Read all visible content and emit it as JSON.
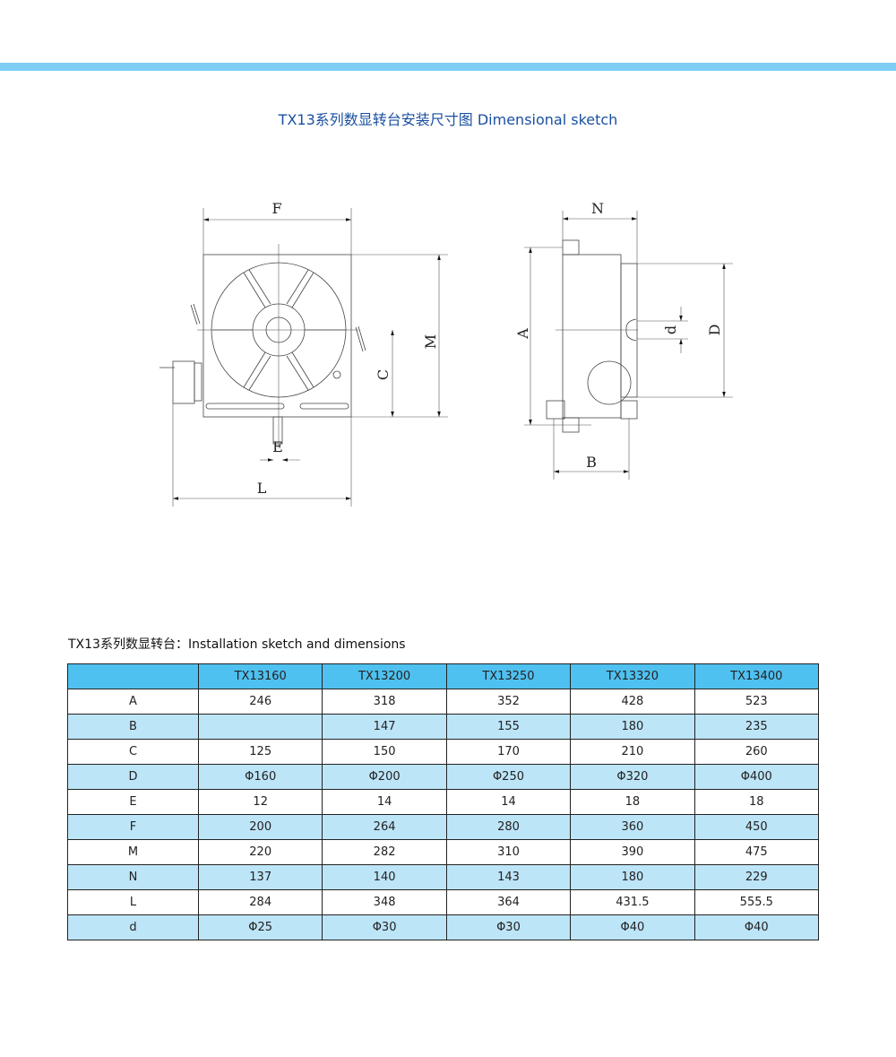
{
  "title": "TX13系列数显转台安装尺寸图 Dimensional sketch",
  "drawing_labels": {
    "F": "F",
    "M": "M",
    "C": "C",
    "E": "E",
    "L": "L",
    "N": "N",
    "A": "A",
    "D": "D",
    "d": "d",
    "B": "B"
  },
  "table_title": "TX13系列数显转台：Installation sketch and dimensions",
  "colors": {
    "band": "#7ecef4",
    "title": "#1a4fa0",
    "header": "#4fc1f0",
    "alt_row": "#bde5f8"
  },
  "table": {
    "columns": [
      "",
      "TX13160",
      "TX13200",
      "TX13250",
      "TX13320",
      "TX13400"
    ],
    "rows": [
      [
        "A",
        "246",
        "318",
        "352",
        "428",
        "523"
      ],
      [
        "B",
        "",
        "147",
        "155",
        "180",
        "235"
      ],
      [
        "C",
        "125",
        "150",
        "170",
        "210",
        "260"
      ],
      [
        "D",
        "Φ160",
        "Φ200",
        "Φ250",
        "Φ320",
        "Φ400"
      ],
      [
        "E",
        "12",
        "14",
        "14",
        "18",
        "18"
      ],
      [
        "F",
        "200",
        "264",
        "280",
        "360",
        "450"
      ],
      [
        "M",
        "220",
        "282",
        "310",
        "390",
        "475"
      ],
      [
        "N",
        "137",
        "140",
        "143",
        "180",
        "229"
      ],
      [
        "L",
        "284",
        "348",
        "364",
        "431.5",
        "555.5"
      ],
      [
        "d",
        "Φ25",
        "Φ30",
        "Φ30",
        "Φ40",
        "Φ40"
      ]
    ]
  }
}
